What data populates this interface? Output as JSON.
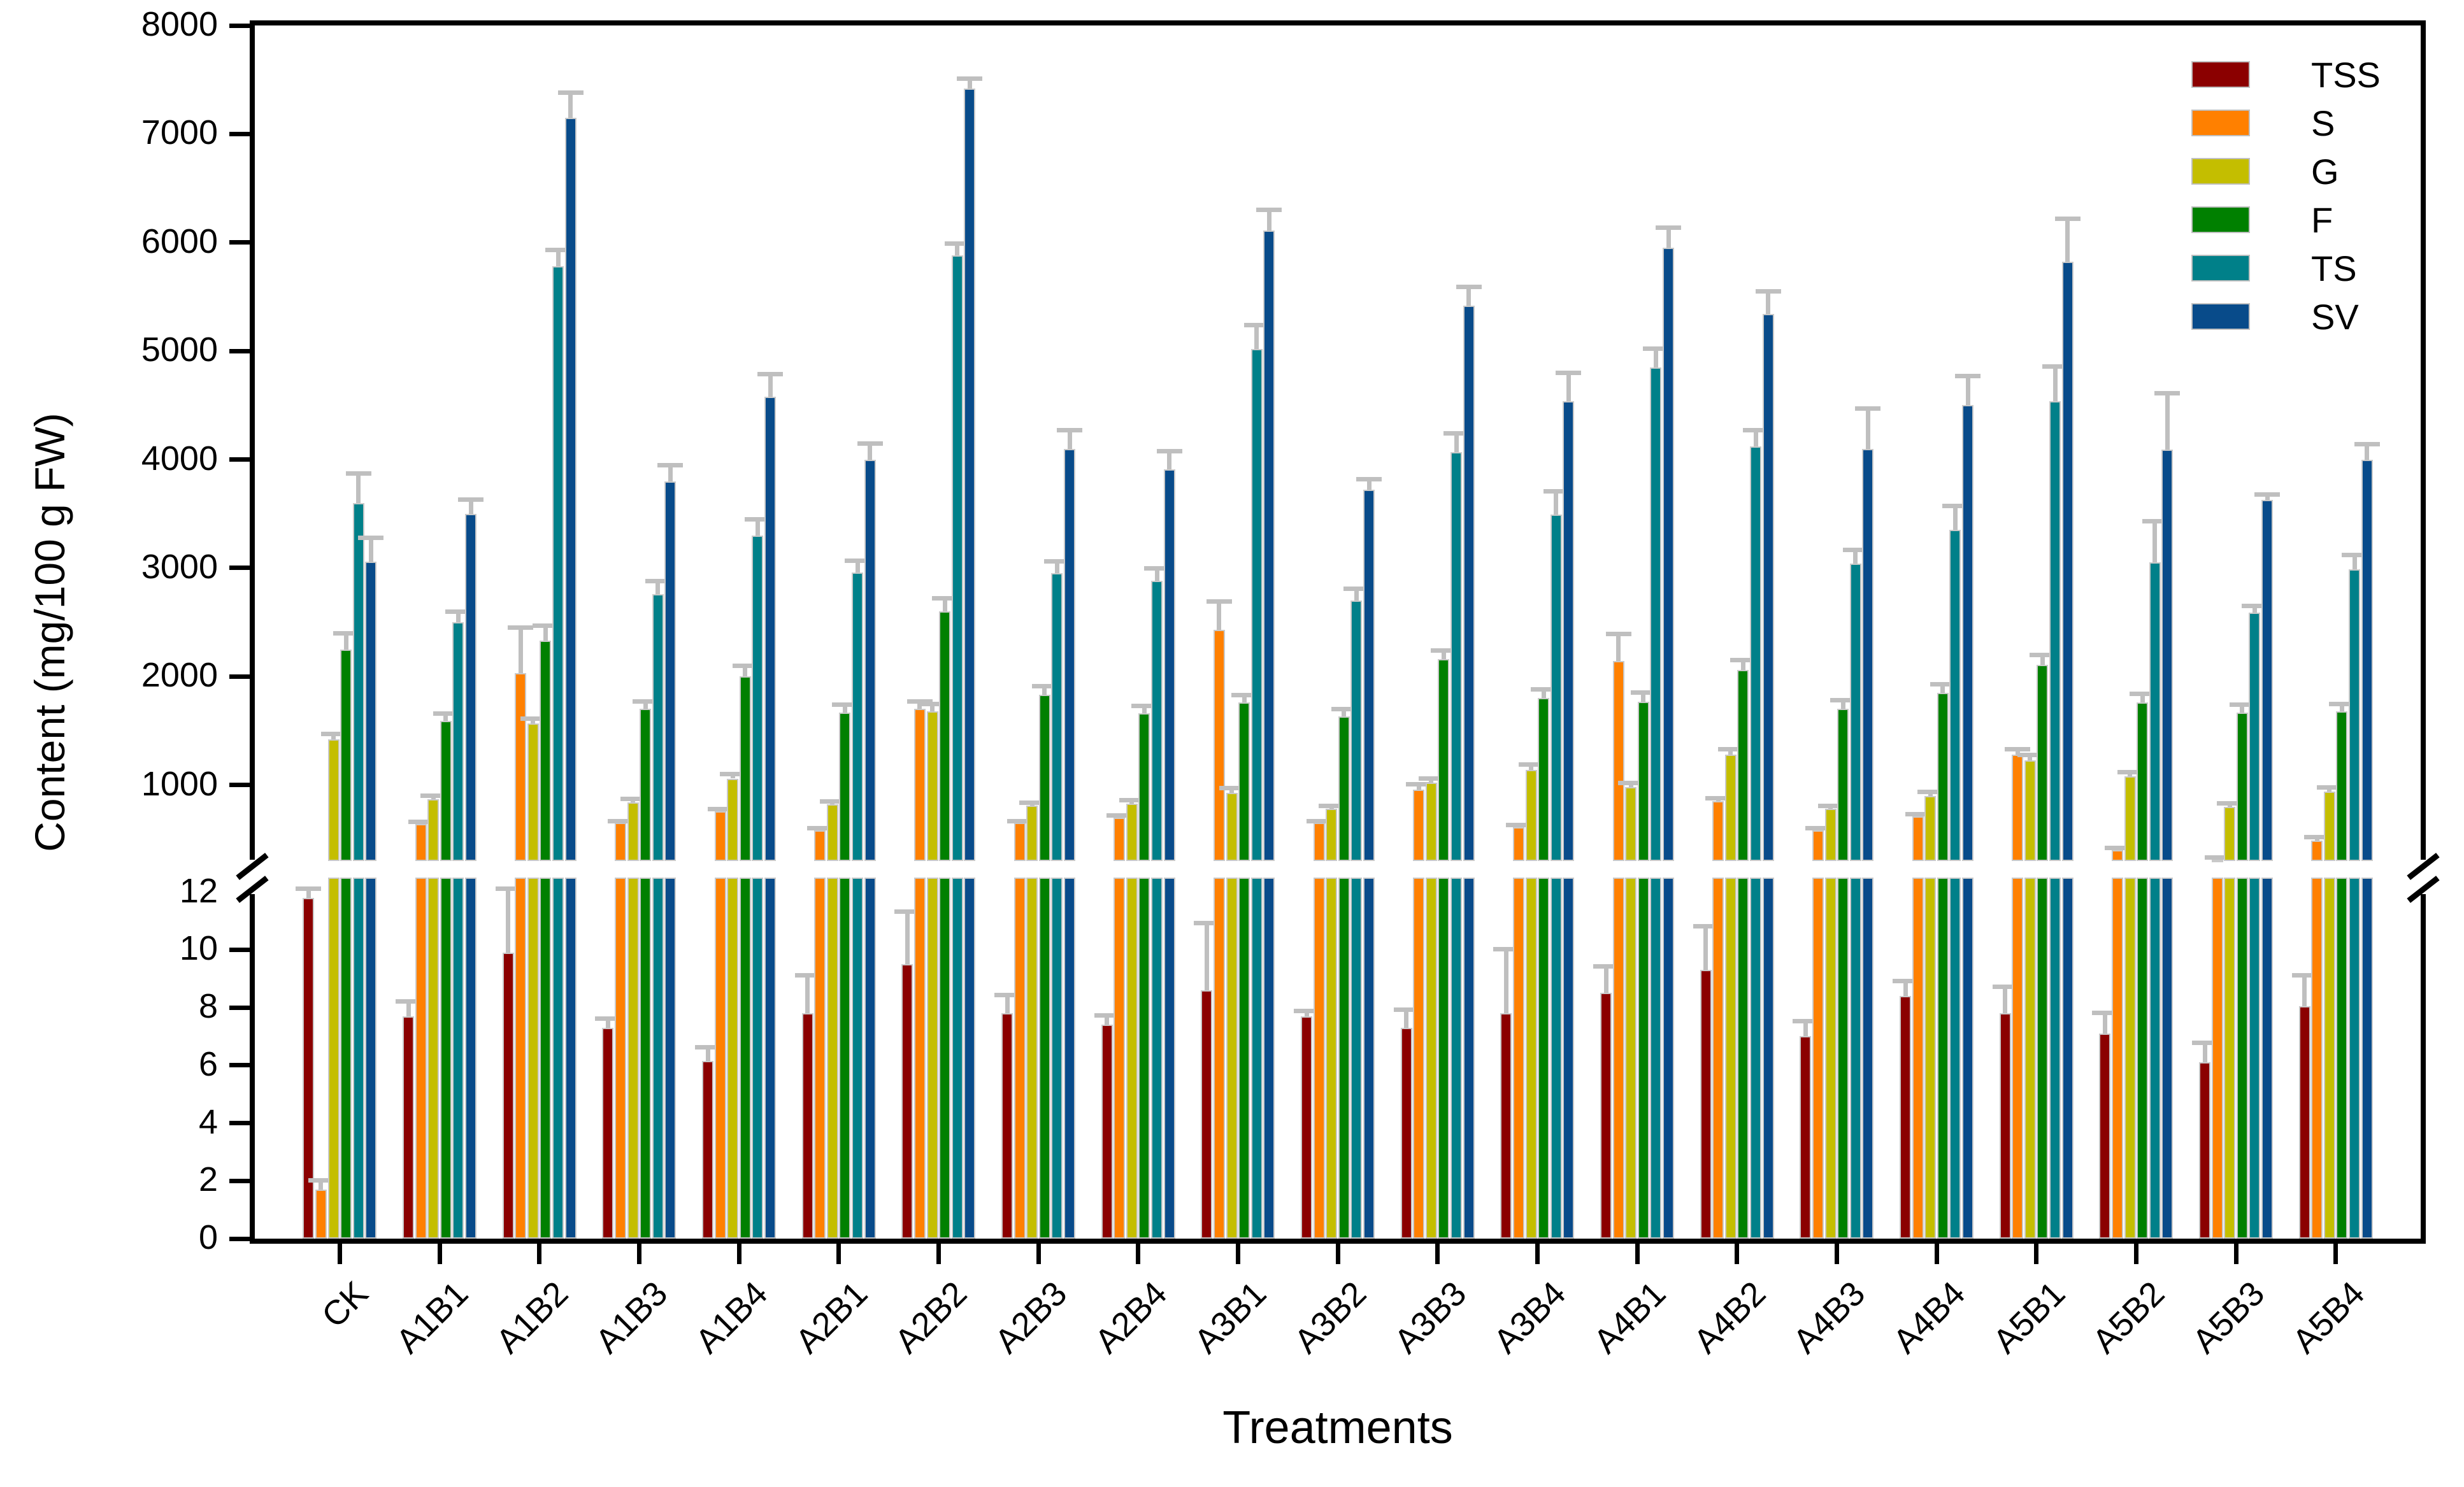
{
  "chart_data": {
    "type": "bar",
    "title": "",
    "xlabel": "Treatments",
    "ylabel": "Content (mg/100 g FW)",
    "grid": false,
    "legend_position": "top-right-inside",
    "error_bar_color": "#bfbfbf",
    "bar_outline_color": "#c9c9c9",
    "axis_color": "#000000",
    "broken_y_axis": {
      "lower_range": [
        0,
        12
      ],
      "lower_ticks": [
        0,
        2,
        4,
        6,
        8,
        10
      ],
      "lower_top_label": 12,
      "upper_range": [
        300,
        8000
      ],
      "upper_ticks": [
        1000,
        2000,
        3000,
        4000,
        5000,
        6000,
        7000,
        8000
      ]
    },
    "categories": [
      "CK",
      "A1B1",
      "A1B2",
      "A1B3",
      "A1B4",
      "A2B1",
      "A2B2",
      "A2B3",
      "A2B4",
      "A3B1",
      "A3B2",
      "A3B3",
      "A3B4",
      "A4B1",
      "A4B2",
      "A4B3",
      "A4B4",
      "A5B1",
      "A5B2",
      "A5B3",
      "A5B4"
    ],
    "series": [
      {
        "name": "TSS",
        "color": "#8B0000",
        "values": [
          11.8,
          7.7,
          9.9,
          7.3,
          6.15,
          7.8,
          9.5,
          7.8,
          7.4,
          8.6,
          7.7,
          7.3,
          7.8,
          8.5,
          9.3,
          7.0,
          8.4,
          7.8,
          7.1,
          6.1,
          8.05
        ],
        "errors": [
          0.4,
          0.6,
          2.3,
          0.4,
          0.55,
          1.4,
          1.9,
          0.7,
          0.4,
          2.4,
          0.25,
          0.7,
          2.3,
          1.0,
          1.6,
          0.6,
          0.6,
          1.0,
          0.8,
          0.75,
          1.15
        ]
      },
      {
        "name": "S",
        "color": "#FF8000",
        "values": [
          1.7,
          640,
          2030,
          650,
          760,
          580,
          1700,
          650,
          700,
          2430,
          650,
          960,
          610,
          2140,
          850,
          580,
          710,
          1280,
          400,
          310,
          490
        ],
        "errors": [
          0.4,
          40,
          440,
          40,
          40,
          40,
          90,
          40,
          40,
          280,
          40,
          70,
          40,
          270,
          50,
          40,
          40,
          70,
          40,
          40,
          50
        ]
      },
      {
        "name": "G",
        "color": "#C4BE00",
        "values": [
          1420,
          870,
          1570,
          840,
          1060,
          820,
          1680,
          810,
          830,
          930,
          780,
          1020,
          1140,
          980,
          1280,
          780,
          900,
          1230,
          1080,
          800,
          940
        ],
        "errors": [
          70,
          50,
          60,
          50,
          60,
          50,
          90,
          50,
          50,
          60,
          50,
          60,
          70,
          60,
          70,
          50,
          60,
          70,
          60,
          50,
          60
        ]
      },
      {
        "name": "F",
        "color": "#008000",
        "values": [
          2250,
          1590,
          2330,
          1700,
          2000,
          1670,
          2600,
          1830,
          1660,
          1760,
          1630,
          2160,
          1800,
          1770,
          2060,
          1700,
          1850,
          2110,
          1760,
          1670,
          1680
        ],
        "errors": [
          170,
          90,
          160,
          90,
          120,
          90,
          140,
          100,
          90,
          90,
          90,
          100,
          100,
          100,
          110,
          100,
          100,
          110,
          100,
          90,
          90
        ]
      },
      {
        "name": "TS",
        "color": "#008089",
        "values": [
          3600,
          2500,
          5780,
          2760,
          3300,
          2960,
          5880,
          2950,
          2880,
          5020,
          2700,
          4070,
          3490,
          4850,
          4120,
          3040,
          3350,
          4540,
          3050,
          2590,
          2990
        ],
        "errors": [
          290,
          120,
          170,
          140,
          170,
          130,
          130,
          130,
          140,
          240,
          130,
          190,
          240,
          190,
          170,
          150,
          240,
          340,
          400,
          80,
          150
        ]
      },
      {
        "name": "SV",
        "color": "#084B8A",
        "values": [
          3060,
          3500,
          7150,
          3800,
          4580,
          4000,
          7420,
          4100,
          3910,
          6110,
          3720,
          5420,
          4540,
          5950,
          5340,
          4100,
          4500,
          5820,
          4090,
          3630,
          4000
        ],
        "errors": [
          240,
          150,
          250,
          170,
          230,
          170,
          110,
          190,
          190,
          210,
          120,
          190,
          280,
          210,
          230,
          390,
          290,
          420,
          540,
          70,
          160
        ]
      }
    ]
  }
}
